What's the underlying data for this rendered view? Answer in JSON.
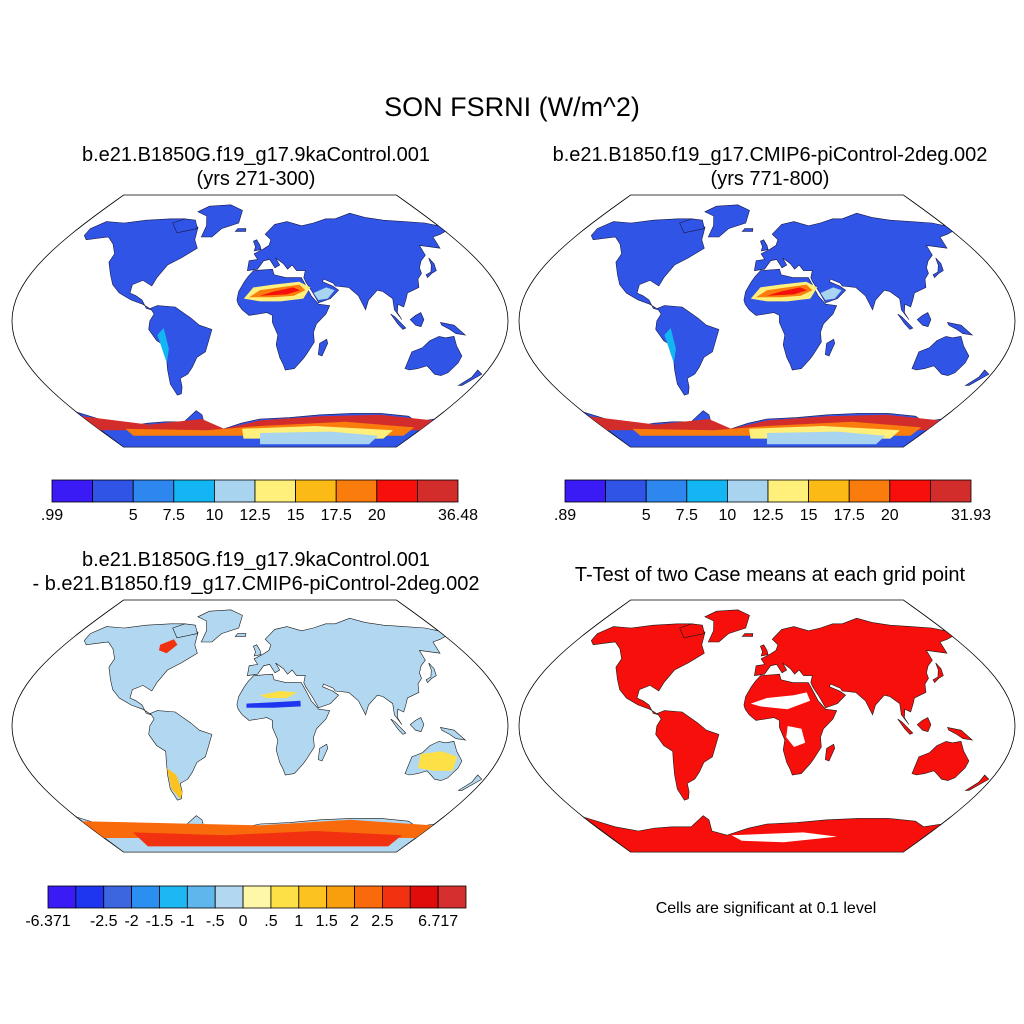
{
  "title": "SON FSRNI (W/m^2)",
  "panels": [
    {
      "id": "case1",
      "title_line1": "b.e21.B1850G.f19_g17.9kaControl.001",
      "title_line2": "(yrs 271-300)",
      "colorbar": {
        "colors": [
          "#3a1af5",
          "#2f54e6",
          "#2e86ef",
          "#13b6f3",
          "#a8d4ef",
          "#fef07a",
          "#fcba17",
          "#f97c0c",
          "#f60f0b",
          "#d32d2b"
        ],
        "labels": [
          ".99",
          "",
          "5",
          "7.5",
          "10",
          "12.5",
          "15",
          "17.5",
          "20",
          "",
          "36.48"
        ]
      }
    },
    {
      "id": "case2",
      "title_line1": "b.e21.B1850.f19_g17.CMIP6-piControl-2deg.002",
      "title_line2": "(yrs 771-800)",
      "colorbar": {
        "colors": [
          "#3a1af5",
          "#2f54e6",
          "#2e86ef",
          "#13b6f3",
          "#a8d4ef",
          "#fef07a",
          "#fcba17",
          "#f97c0c",
          "#f60f0b",
          "#d32d2b"
        ],
        "labels": [
          ".89",
          "",
          "5",
          "7.5",
          "10",
          "12.5",
          "15",
          "17.5",
          "20",
          "",
          "31.93"
        ]
      }
    },
    {
      "id": "diff",
      "title_line1": "b.e21.B1850G.f19_g17.9kaControl.001",
      "title_line2": "- b.e21.B1850.f19_g17.CMIP6-piControl-2deg.002",
      "colorbar": {
        "colors": [
          "#3a1af5",
          "#1f36f0",
          "#3b66e0",
          "#2a8ff0",
          "#1db8f4",
          "#5fb6ec",
          "#b1d8f0",
          "#fff7a8",
          "#fde046",
          "#fcc320",
          "#f99e0d",
          "#f86a0b",
          "#f23110",
          "#e00b0b",
          "#d52f2f"
        ],
        "labels": [
          "-6.371",
          "",
          "-2.5",
          "-2",
          "-1.5",
          "-1",
          "-.5",
          "0",
          ".5",
          "1",
          "1.5",
          "2",
          "2.5",
          "",
          "6.717"
        ]
      }
    },
    {
      "id": "ttest",
      "title_line1": "T-Test of two Case means at each grid point",
      "note": "Cells are significant at 0.1 level"
    }
  ],
  "colors": {
    "land_fill_case": "#2f54e6",
    "sahara_hot": "#f60f0b",
    "significant": "#f60f0b",
    "diff_base": "#a8d4ef"
  }
}
